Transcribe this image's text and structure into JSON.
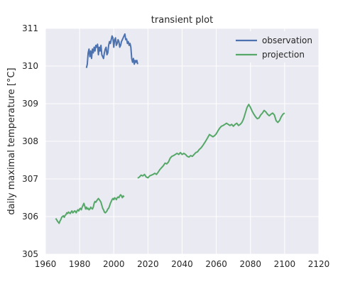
{
  "chart_data": {
    "type": "line",
    "title": "transient plot",
    "xlabel": "",
    "ylabel": "daily maximal temperature [°C]",
    "xlim": [
      1960,
      2120
    ],
    "ylim": [
      305,
      311
    ],
    "xticks": [
      1960,
      1980,
      2000,
      2020,
      2040,
      2060,
      2080,
      2100,
      2120
    ],
    "yticks": [
      305,
      306,
      307,
      308,
      309,
      310,
      311
    ],
    "grid": true,
    "legend": "top-right",
    "series": [
      {
        "name": "observation",
        "color": "#4c72b0",
        "x": [
          1984,
          1984.5,
          1985,
          1985.5,
          1986,
          1986.5,
          1987,
          1987.5,
          1988,
          1988.5,
          1989,
          1989.5,
          1990,
          1990.5,
          1991,
          1991.5,
          1992,
          1992.5,
          1993,
          1993.5,
          1994,
          1994.5,
          1995,
          1995.5,
          1996,
          1996.5,
          1997,
          1997.5,
          1998,
          1998.5,
          1999,
          1999.5,
          2000,
          2000.5,
          2001,
          2001.5,
          2002,
          2002.5,
          2003,
          2003.5,
          2004,
          2004.5,
          2005,
          2005.5,
          2006,
          2006.5,
          2007,
          2007.5,
          2008,
          2008.5,
          2009,
          2009.5,
          2010,
          2010.5,
          2011,
          2011.5,
          2012,
          2012.5,
          2013,
          2013.5,
          2014
        ],
        "y": [
          309.95,
          310.05,
          310.35,
          310.45,
          310.25,
          310.4,
          310.2,
          310.45,
          310.35,
          310.5,
          310.4,
          310.55,
          310.5,
          310.58,
          310.3,
          310.5,
          310.4,
          310.55,
          310.3,
          310.25,
          310.2,
          310.35,
          310.45,
          310.5,
          310.3,
          310.35,
          310.55,
          310.65,
          310.6,
          310.7,
          310.8,
          310.75,
          310.5,
          310.7,
          310.75,
          310.55,
          310.6,
          310.7,
          310.65,
          310.5,
          310.55,
          310.65,
          310.7,
          310.75,
          310.8,
          310.85,
          310.7,
          310.72,
          310.6,
          310.65,
          310.55,
          310.6,
          310.5,
          310.2,
          310.1,
          310.2,
          310.05,
          310.15,
          310.1,
          310.15,
          310.05
        ]
      },
      {
        "name": "projection",
        "color": "#55a868",
        "segments": [
          {
            "x": [
              1966,
              1966.5,
              1967,
              1967.5,
              1968,
              1968.5,
              1969,
              1969.5,
              1970,
              1970.5,
              1971,
              1971.5,
              1972,
              1972.5,
              1973,
              1973.5,
              1974,
              1974.5,
              1975,
              1975.5,
              1976,
              1976.5,
              1977,
              1977.5,
              1978,
              1978.5,
              1979,
              1979.5,
              1980,
              1980.5,
              1981,
              1981.5,
              1982,
              1982.5,
              1983,
              1983.5,
              1984,
              1984.5,
              1985,
              1985.5,
              1986,
              1986.5,
              1987,
              1987.5,
              1988,
              1988.5,
              1989,
              1989.5,
              1990,
              1990.5,
              1991,
              1991.5,
              1992,
              1992.5,
              1993,
              1993.5,
              1994,
              1994.5,
              1995,
              1995.5,
              1996,
              1996.5,
              1997,
              1997.5,
              1998,
              1998.5,
              1999,
              1999.5,
              2000,
              2000.5,
              2001,
              2001.5,
              2002,
              2002.5,
              2003,
              2003.5,
              2004,
              2004.5,
              2005,
              2005.5,
              2006
            ],
            "y": [
              305.95,
              305.92,
              305.88,
              305.85,
              305.82,
              305.88,
              305.92,
              305.98,
              306.0,
              306.02,
              305.98,
              306.03,
              306.05,
              306.1,
              306.08,
              306.12,
              306.1,
              306.08,
              306.12,
              306.15,
              306.1,
              306.12,
              306.15,
              306.14,
              306.1,
              306.15,
              306.18,
              306.15,
              306.2,
              306.22,
              306.18,
              306.25,
              306.3,
              306.35,
              306.28,
              306.2,
              306.25,
              306.2,
              306.22,
              306.18,
              306.2,
              306.25,
              306.22,
              306.2,
              306.25,
              306.35,
              306.4,
              306.38,
              306.42,
              306.45,
              306.48,
              306.45,
              306.42,
              306.38,
              306.3,
              306.22,
              306.18,
              306.12,
              306.1,
              306.12,
              306.15,
              306.2,
              306.22,
              306.28,
              306.35,
              306.4,
              306.45,
              306.48,
              306.45,
              306.5,
              306.48,
              306.45,
              306.5,
              306.52,
              306.5,
              306.55,
              306.58,
              306.55,
              306.5,
              306.55,
              306.52
            ]
          },
          {
            "x": [
              2014,
              2015,
              2016,
              2017,
              2018,
              2019,
              2020,
              2021,
              2022,
              2023,
              2024,
              2025,
              2026,
              2027,
              2028,
              2029,
              2030,
              2031,
              2032,
              2033,
              2034,
              2035,
              2036,
              2037,
              2038,
              2039,
              2040,
              2041,
              2042,
              2043,
              2044,
              2045,
              2046,
              2047,
              2048,
              2049,
              2050,
              2051,
              2052,
              2053,
              2054,
              2055,
              2056,
              2057,
              2058,
              2059,
              2060,
              2061,
              2062,
              2063,
              2064,
              2065,
              2066,
              2067,
              2068,
              2069,
              2070,
              2071,
              2072,
              2073,
              2074,
              2075,
              2076,
              2077,
              2078,
              2079,
              2080,
              2081,
              2082,
              2083,
              2084,
              2085,
              2086,
              2087,
              2088,
              2089,
              2090,
              2091,
              2092,
              2093,
              2094,
              2095,
              2096,
              2097,
              2098,
              2099,
              2100
            ],
            "y": [
              307.02,
              307.05,
              307.1,
              307.08,
              307.12,
              307.05,
              307.03,
              307.08,
              307.1,
              307.12,
              307.15,
              307.12,
              307.18,
              307.25,
              307.3,
              307.35,
              307.42,
              307.4,
              307.45,
              307.55,
              307.6,
              307.62,
              307.65,
              307.68,
              307.65,
              307.7,
              307.65,
              307.68,
              307.65,
              307.6,
              307.58,
              307.62,
              307.6,
              307.65,
              307.7,
              307.72,
              307.78,
              307.82,
              307.88,
              307.95,
              308.02,
              308.1,
              308.18,
              308.15,
              308.12,
              308.15,
              308.2,
              308.28,
              308.35,
              308.4,
              308.42,
              308.45,
              308.48,
              308.45,
              308.42,
              308.45,
              308.4,
              308.45,
              308.48,
              308.42,
              308.45,
              308.5,
              308.6,
              308.75,
              308.9,
              308.98,
              308.9,
              308.8,
              308.72,
              308.65,
              308.6,
              308.62,
              308.7,
              308.75,
              308.82,
              308.78,
              308.72,
              308.68,
              308.72,
              308.75,
              308.7,
              308.55,
              308.5,
              308.55,
              308.65,
              308.72,
              308.75
            ]
          }
        ]
      }
    ]
  }
}
